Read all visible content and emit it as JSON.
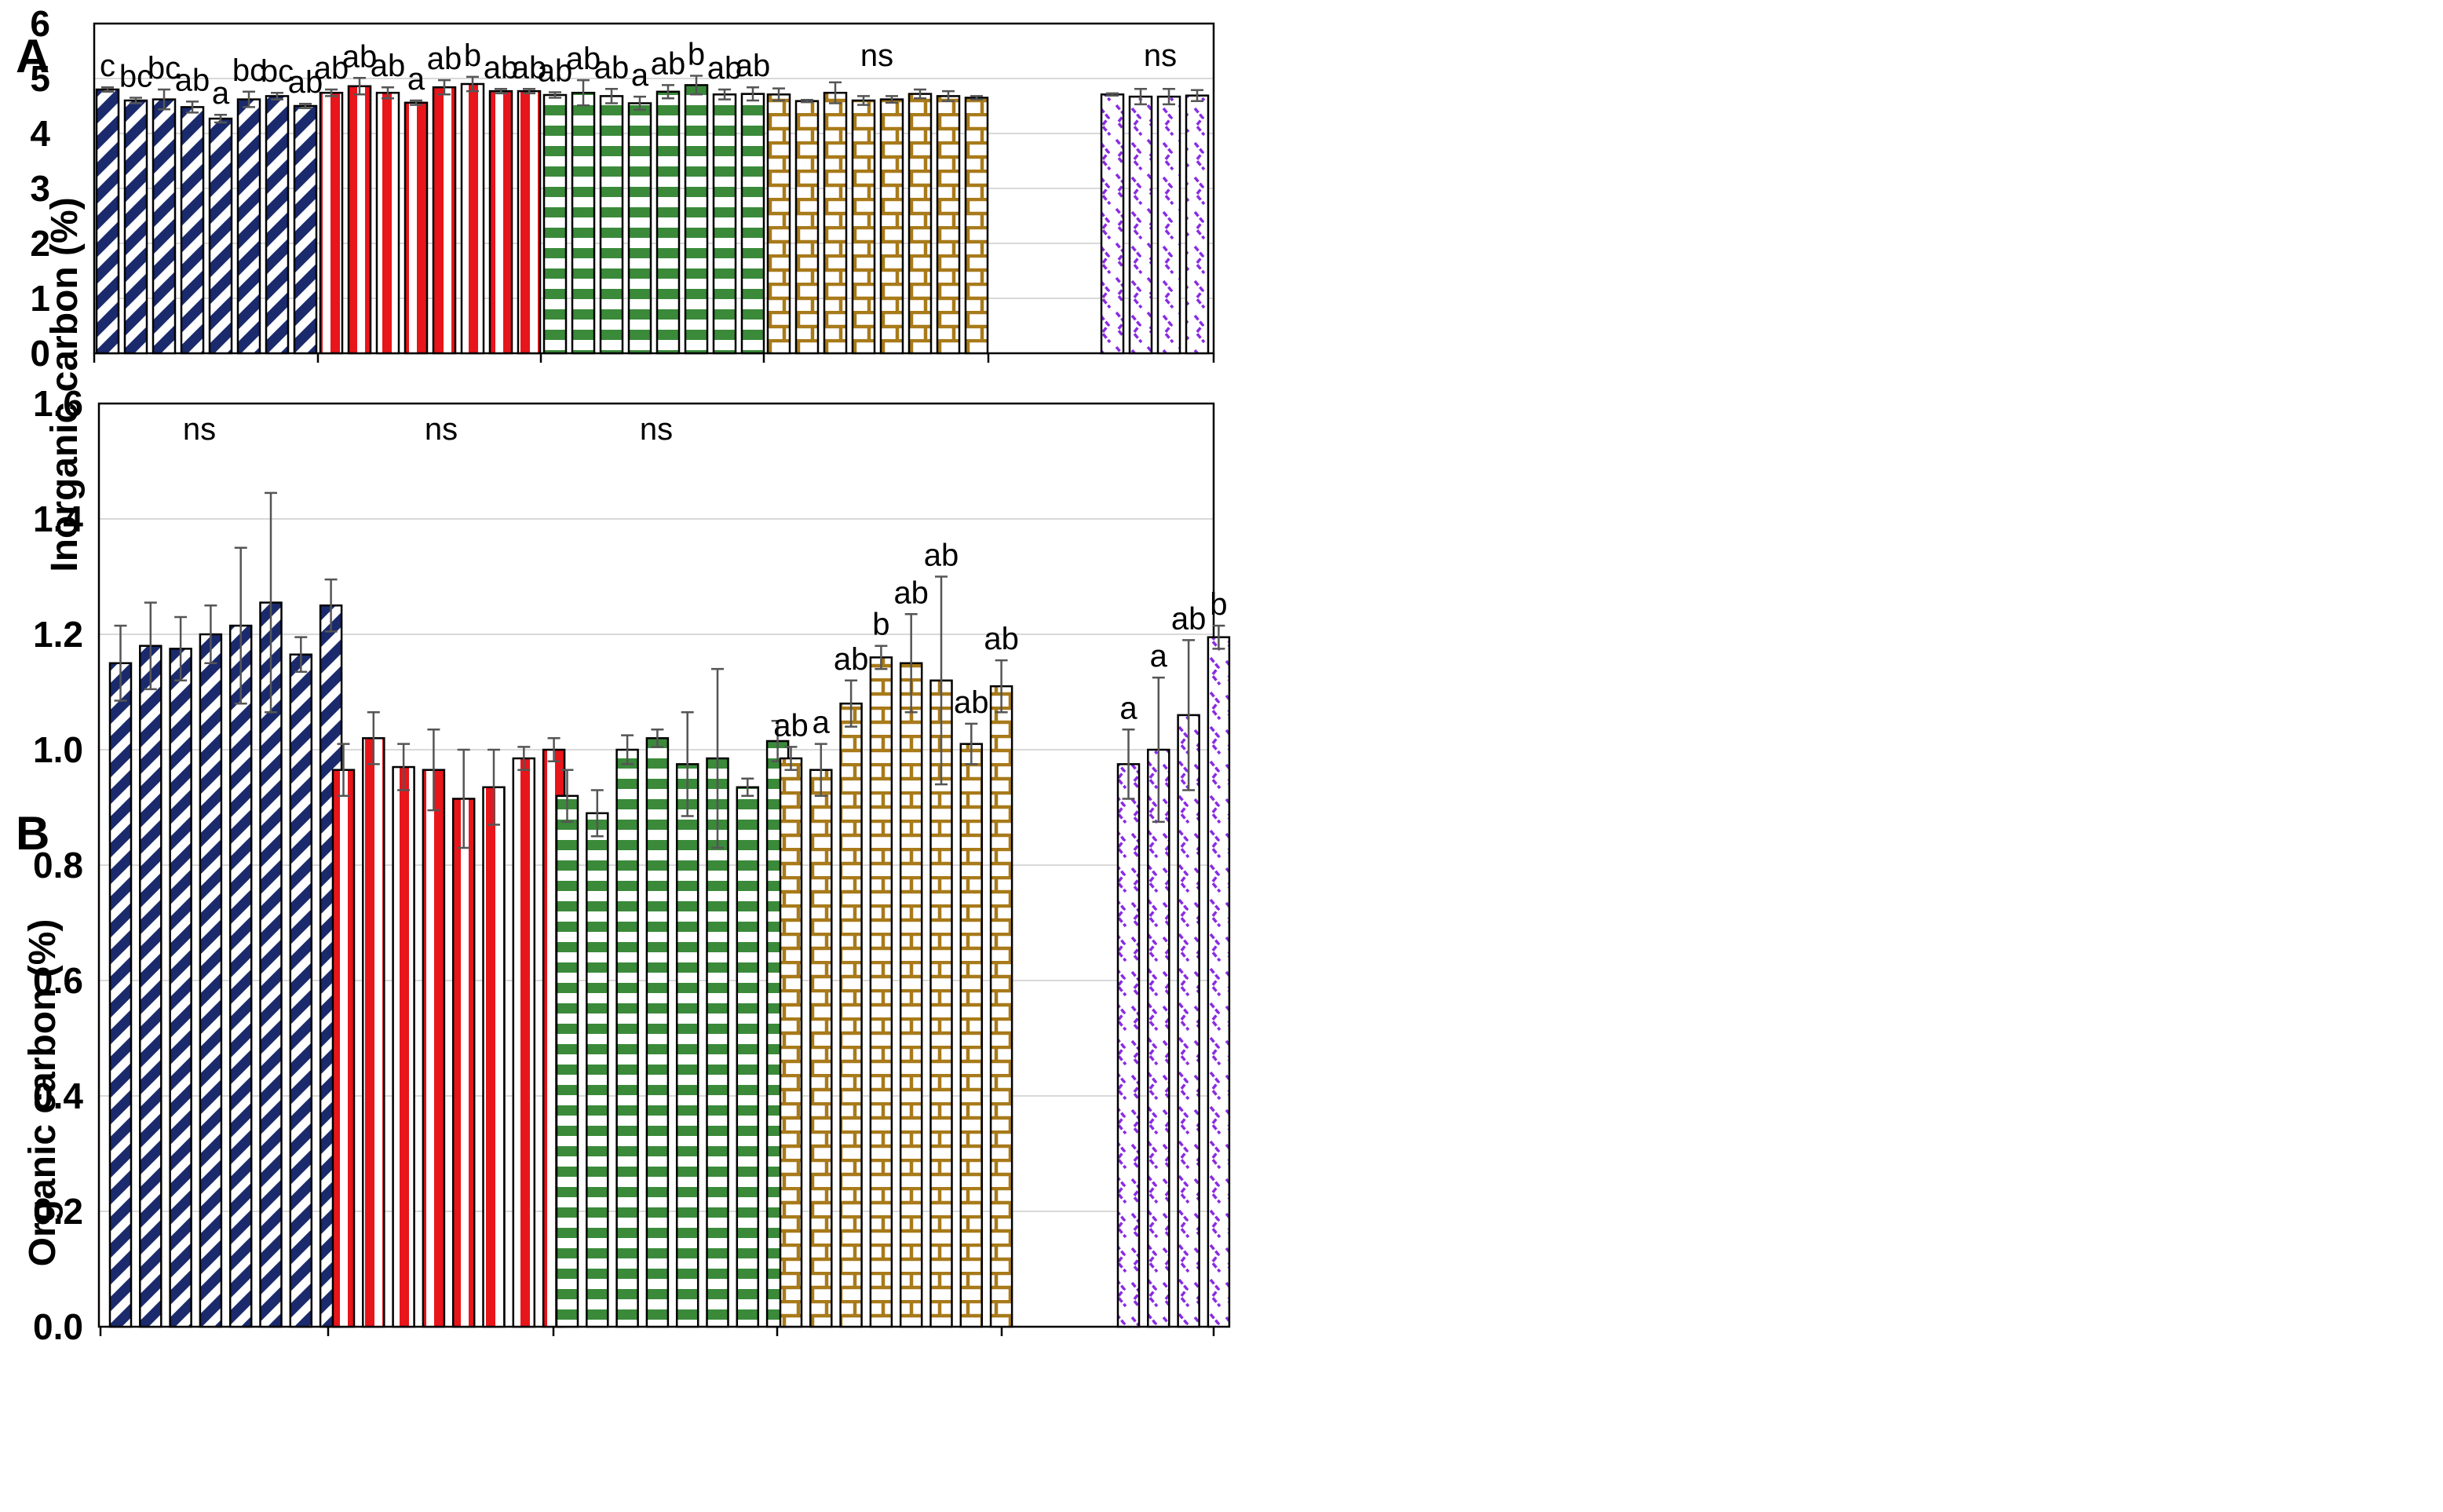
{
  "chart_data": [
    {
      "type": "bar",
      "panel": "A",
      "title": "",
      "xlabel": "",
      "ylabel": "Inorganic carbon (%)",
      "ylim": [
        0,
        6
      ],
      "yticks": [
        "0",
        "1",
        "2",
        "3",
        "4",
        "5",
        "6"
      ],
      "grid": true,
      "groups": [
        {
          "name": "group 1",
          "color": "#1a2a6c",
          "pattern": "diagonal",
          "values": [
            4.8,
            4.6,
            4.62,
            4.48,
            4.27,
            4.62,
            4.68,
            4.5
          ],
          "errors": [
            0.04,
            0.05,
            0.18,
            0.1,
            0.07,
            0.14,
            0.06,
            0.04
          ],
          "labels": [
            "c",
            "bc",
            "bc",
            "ab",
            "a",
            "bc",
            "bc",
            "ab"
          ]
        },
        {
          "name": "group 2",
          "color": "#e8151b",
          "pattern": "vertical",
          "values": [
            4.74,
            4.86,
            4.74,
            4.56,
            4.84,
            4.9,
            4.77,
            4.77
          ],
          "errors": [
            0.06,
            0.15,
            0.1,
            0.04,
            0.13,
            0.13,
            0.04,
            0.04
          ],
          "labels": [
            "ab",
            "ab",
            "ab",
            "a",
            "ab",
            "b",
            "ab",
            "ab"
          ]
        },
        {
          "name": "group 3",
          "color": "#3a8a3a",
          "pattern": "horizontal",
          "values": [
            4.7,
            4.74,
            4.68,
            4.55,
            4.76,
            4.88,
            4.71,
            4.72
          ],
          "errors": [
            0.05,
            0.23,
            0.13,
            0.12,
            0.12,
            0.17,
            0.09,
            0.12
          ],
          "labels": [
            "ab",
            "ab",
            "ab",
            "a",
            "ab",
            "b",
            "ab",
            "ab"
          ]
        },
        {
          "name": "group 4",
          "color": "#a87a1a",
          "pattern": "brick",
          "values": [
            4.71,
            4.59,
            4.74,
            4.6,
            4.62,
            4.72,
            4.68,
            4.65
          ],
          "errors": [
            0.11,
            0.02,
            0.19,
            0.08,
            0.06,
            0.08,
            0.09,
            0.03
          ],
          "labels": [],
          "group_label": "ns"
        },
        {
          "name": "group 5",
          "color": "#8a2be2",
          "pattern": "zigzag",
          "values": [
            4.71,
            4.67,
            4.67,
            4.69
          ],
          "errors": [
            0.02,
            0.14,
            0.14,
            0.1
          ],
          "labels": [],
          "group_label": "ns"
        }
      ]
    },
    {
      "type": "bar",
      "panel": "B",
      "title": "",
      "xlabel": "",
      "ylabel": "Organic carbon (%)",
      "ylim": [
        0,
        1.6
      ],
      "yticks": [
        "0.0",
        "0.2",
        "0.4",
        "0.6",
        "0.8",
        "1.0",
        "1.2",
        "1.4",
        "1.6"
      ],
      "grid": true,
      "groups": [
        {
          "name": "group 1",
          "color": "#1a2a6c",
          "pattern": "diagonal",
          "values": [
            1.15,
            1.18,
            1.175,
            1.2,
            1.215,
            1.255,
            1.165,
            1.25
          ],
          "errors": [
            0.065,
            0.075,
            0.055,
            0.05,
            0.135,
            0.19,
            0.03,
            0.045
          ],
          "labels": [],
          "group_label": "ns"
        },
        {
          "name": "group 2",
          "color": "#e8151b",
          "pattern": "vertical",
          "values": [
            0.965,
            1.02,
            0.97,
            0.965,
            0.915,
            0.935,
            0.985,
            1.0
          ],
          "errors": [
            0.045,
            0.045,
            0.04,
            0.07,
            0.085,
            0.065,
            0.02,
            0.02
          ],
          "labels": [],
          "group_label": "ns"
        },
        {
          "name": "group 3",
          "color": "#3a8a3a",
          "pattern": "horizontal",
          "values": [
            0.92,
            0.89,
            1.0,
            1.02,
            0.975,
            0.985,
            0.935,
            1.015
          ],
          "errors": [
            0.045,
            0.04,
            0.025,
            0.015,
            0.09,
            0.155,
            0.015,
            0.035
          ],
          "labels": [],
          "group_label": "ns"
        },
        {
          "name": "group 4",
          "color": "#a87a1a",
          "pattern": "brick",
          "values": [
            0.985,
            0.965,
            1.08,
            1.16,
            1.15,
            1.12,
            1.01,
            1.11
          ],
          "errors": [
            0.02,
            0.045,
            0.04,
            0.02,
            0.085,
            0.18,
            0.035,
            0.045
          ],
          "labels": [
            "ab",
            "a",
            "ab",
            "b",
            "ab",
            "ab",
            "ab",
            "ab"
          ]
        },
        {
          "name": "group 5",
          "color": "#8a2be2",
          "pattern": "zigzag",
          "values": [
            0.975,
            1.0,
            1.06,
            1.195
          ],
          "errors": [
            0.06,
            0.125,
            0.13,
            0.02
          ],
          "labels": [
            "a",
            "a",
            "ab",
            "b"
          ]
        }
      ]
    }
  ]
}
